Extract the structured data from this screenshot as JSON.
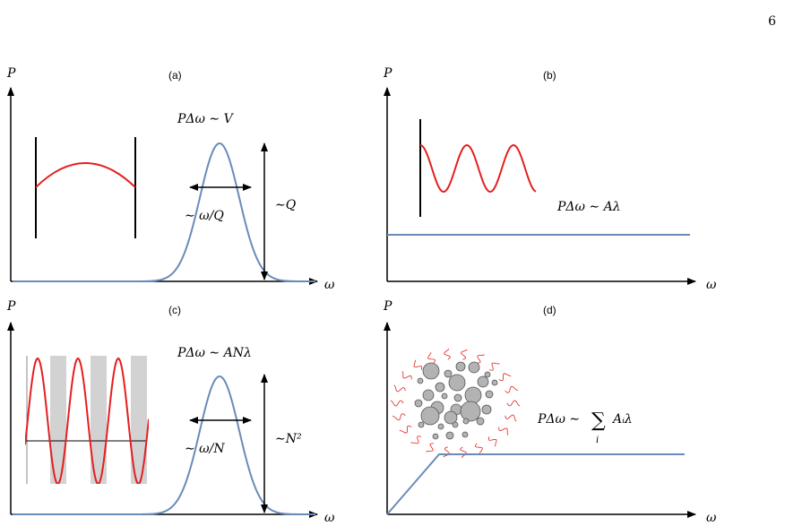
{
  "page_number": "6",
  "colors": {
    "curve": "#6a8bb8",
    "wave": "#e41f1f",
    "axis": "#000000",
    "stripe": "#d2d2d2",
    "particle": "#b3b3b3"
  },
  "panels": [
    {
      "id": "a",
      "label": "(a)",
      "ylabel": "P",
      "xlabel": "ω",
      "formula": "PΔω ∼ V",
      "width_label": "∼ ω/Q",
      "height_label": "∼Q",
      "inset": "standing wave between two walls"
    },
    {
      "id": "b",
      "label": "(b)",
      "ylabel": "P",
      "xlabel": "ω",
      "formula": "PΔω ∼ Aλ",
      "inset": "wave emitted from a single wall"
    },
    {
      "id": "c",
      "label": "(c)",
      "ylabel": "P",
      "xlabel": "ω",
      "formula": "PΔω ∼ ANλ",
      "width_label": "∼ ω/N",
      "height_label": "∼N²",
      "inset": "wave through periodic stripes"
    },
    {
      "id": "d",
      "label": "(d)",
      "ylabel": "P",
      "xlabel": "ω",
      "formula_main": "PΔω ∼",
      "formula_sum": "∑",
      "formula_sub": "i",
      "formula_term": "Aᵢλ",
      "inset": "cluster of scattering particles"
    }
  ]
}
